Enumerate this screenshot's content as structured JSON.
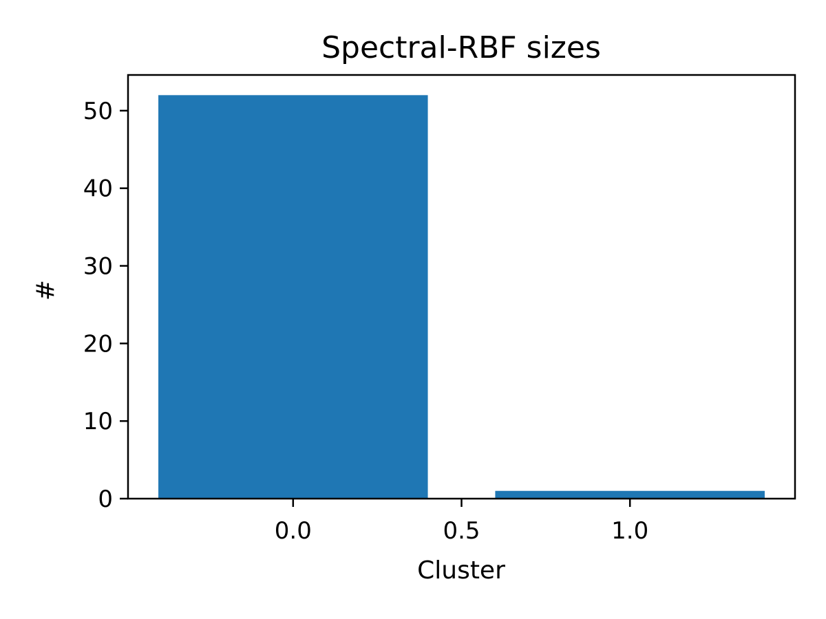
{
  "chart_data": {
    "type": "bar",
    "title": "Spectral-RBF sizes",
    "xlabel": "Cluster",
    "ylabel": "#",
    "x": [
      0,
      1
    ],
    "values": [
      52,
      1
    ],
    "bar_width": 0.8,
    "xlim": [
      -0.49,
      1.49
    ],
    "ylim": [
      0,
      54.6
    ],
    "xticks": [
      0.0,
      0.5,
      1.0
    ],
    "xtick_labels": [
      "0.0",
      "0.5",
      "1.0"
    ],
    "yticks": [
      0,
      10,
      20,
      30,
      40,
      50
    ],
    "ytick_labels": [
      "0",
      "10",
      "20",
      "30",
      "40",
      "50"
    ],
    "bar_color": "#1f77b4",
    "grid": false,
    "legend": "none"
  }
}
